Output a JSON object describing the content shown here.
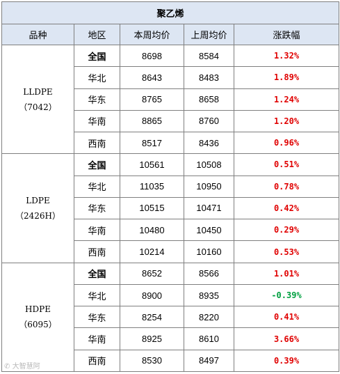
{
  "title": "聚乙烯",
  "headers": [
    "品种",
    "地区",
    "本周均价",
    "上周均价",
    "涨跌幅"
  ],
  "groups": [
    {
      "product": "LLDPE",
      "code": "（7042）",
      "rows": [
        {
          "region": "全国",
          "this_week": "8698",
          "last_week": "8584",
          "change": "1.32%",
          "color": "#e00000",
          "bold": true
        },
        {
          "region": "华北",
          "this_week": "8643",
          "last_week": "8483",
          "change": "1.89%",
          "color": "#e00000",
          "bold": false
        },
        {
          "region": "华东",
          "this_week": "8765",
          "last_week": "8658",
          "change": "1.24%",
          "color": "#e00000",
          "bold": false
        },
        {
          "region": "华南",
          "this_week": "8865",
          "last_week": "8760",
          "change": "1.20%",
          "color": "#e00000",
          "bold": false
        },
        {
          "region": "西南",
          "this_week": "8517",
          "last_week": "8436",
          "change": "0.96%",
          "color": "#e00000",
          "bold": false
        }
      ]
    },
    {
      "product": "LDPE",
      "code": "（2426H）",
      "rows": [
        {
          "region": "全国",
          "this_week": "10561",
          "last_week": "10508",
          "change": "0.51%",
          "color": "#e00000",
          "bold": true
        },
        {
          "region": "华北",
          "this_week": "11035",
          "last_week": "10950",
          "change": "0.78%",
          "color": "#e00000",
          "bold": false
        },
        {
          "region": "华东",
          "this_week": "10515",
          "last_week": "10471",
          "change": "0.42%",
          "color": "#e00000",
          "bold": false
        },
        {
          "region": "华南",
          "this_week": "10480",
          "last_week": "10450",
          "change": "0.29%",
          "color": "#e00000",
          "bold": false
        },
        {
          "region": "西南",
          "this_week": "10214",
          "last_week": "10160",
          "change": "0.53%",
          "color": "#e00000",
          "bold": false
        }
      ]
    },
    {
      "product": "HDPE",
      "code": "（6095）",
      "rows": [
        {
          "region": "全国",
          "this_week": "8652",
          "last_week": "8566",
          "change": "1.01%",
          "color": "#e00000",
          "bold": true
        },
        {
          "region": "华北",
          "this_week": "8900",
          "last_week": "8935",
          "change": "-0.39%",
          "color": "#00a040",
          "bold": false
        },
        {
          "region": "华东",
          "this_week": "8254",
          "last_week": "8220",
          "change": "0.41%",
          "color": "#e00000",
          "bold": false
        },
        {
          "region": "华南",
          "this_week": "8925",
          "last_week": "8610",
          "change": "3.66%",
          "color": "#e00000",
          "bold": false
        },
        {
          "region": "西南",
          "this_week": "8530",
          "last_week": "8497",
          "change": "0.39%",
          "color": "#e00000",
          "bold": false
        }
      ]
    }
  ],
  "watermark": "大智慧阿"
}
